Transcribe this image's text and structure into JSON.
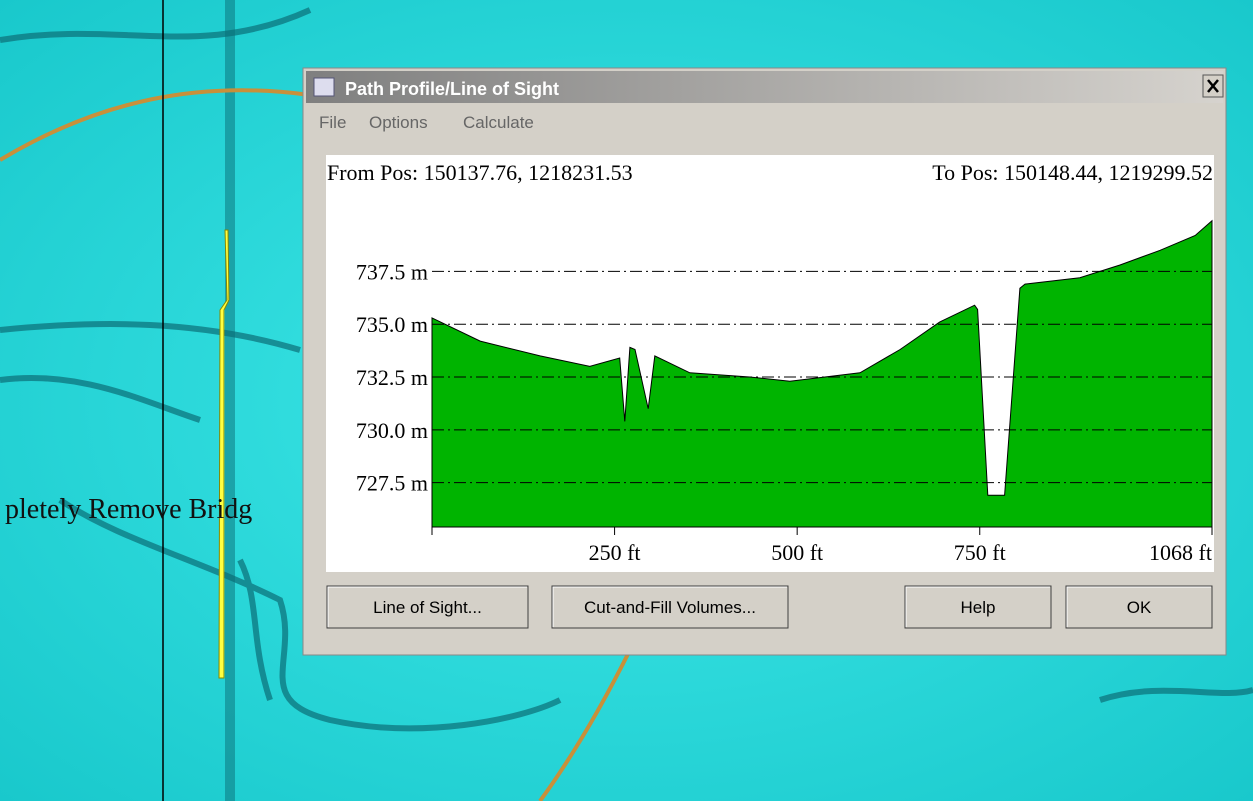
{
  "map": {
    "label": "pletely Remove Bridg"
  },
  "window": {
    "title": "Path Profile/Line of Sight",
    "menu": [
      "File",
      "Options",
      "Calculate"
    ],
    "from_pos": "From Pos: 150137.76, 1218231.53",
    "to_pos": "To Pos: 150148.44, 1219299.52",
    "buttons": [
      "Line of Sight...",
      "Cut-and-Fill Volumes...",
      "Help",
      "OK"
    ]
  },
  "chart_data": {
    "type": "area",
    "color": "#00b400",
    "x": [
      0,
      66,
      148,
      216,
      257,
      264,
      271,
      278,
      296,
      305,
      353,
      435,
      490,
      586,
      641,
      695,
      743,
      747,
      761,
      784,
      805,
      812,
      887,
      942,
      997,
      1045,
      1068
    ],
    "values": [
      735.3,
      734.2,
      733.5,
      733.0,
      733.4,
      730.4,
      733.9,
      733.8,
      731.0,
      733.5,
      732.7,
      732.5,
      732.3,
      732.7,
      733.8,
      735.1,
      735.9,
      735.7,
      726.9,
      726.9,
      736.7,
      736.9,
      737.2,
      737.8,
      738.5,
      739.2,
      739.9
    ],
    "xlim": [
      0,
      1068
    ],
    "ylim": [
      725.4,
      740.5
    ],
    "xticks": [
      {
        "value": 250,
        "label": "250 ft"
      },
      {
        "value": 500,
        "label": "500 ft"
      },
      {
        "value": 750,
        "label": "750 ft"
      },
      {
        "value": 1068,
        "label": "1068 ft"
      }
    ],
    "yticks": [
      {
        "value": 727.5,
        "label": "727.5 m"
      },
      {
        "value": 730.0,
        "label": "730.0 m"
      },
      {
        "value": 732.5,
        "label": "732.5 m"
      },
      {
        "value": 735.0,
        "label": "735.0 m"
      },
      {
        "value": 737.5,
        "label": "737.5 m"
      }
    ],
    "grid": true
  }
}
